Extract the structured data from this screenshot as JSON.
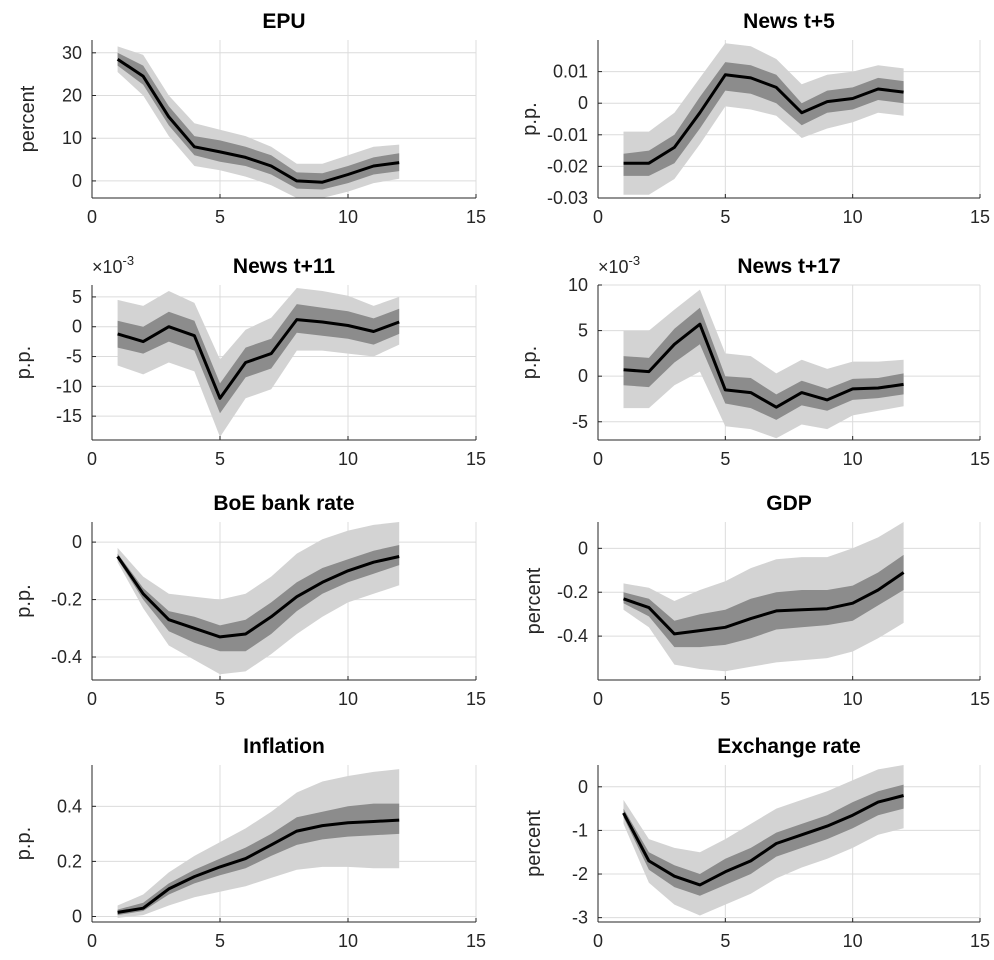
{
  "chart_data": [
    {
      "type": "line",
      "title": "EPU",
      "ylabel": "percent",
      "xlim": [
        0,
        15
      ],
      "ylim": [
        -4,
        33
      ],
      "xticks": [
        0,
        5,
        10,
        15
      ],
      "yticks": [
        0,
        10,
        20,
        30
      ],
      "ytick_labels": [
        "0",
        "10",
        "20",
        "30"
      ],
      "grid": true,
      "x": [
        1,
        2,
        3,
        4,
        5,
        6,
        7,
        8,
        9,
        10,
        11,
        12
      ],
      "series": [
        {
          "role": "median",
          "values": [
            28.5,
            24.5,
            15.0,
            8.0,
            6.8,
            5.5,
            3.5,
            0,
            -0.3,
            1.5,
            3.5,
            4.3
          ]
        },
        {
          "role": "band68",
          "lower": [
            27.0,
            22.5,
            13.0,
            6.0,
            4.5,
            3.5,
            1.5,
            -1.8,
            -2.0,
            -0.5,
            1.5,
            2.3
          ],
          "upper": [
            30.0,
            27.0,
            17.5,
            10.5,
            9.5,
            8.0,
            6.0,
            2.0,
            1.8,
            3.5,
            5.5,
            6.5
          ]
        },
        {
          "role": "band90",
          "lower": [
            25.5,
            20.0,
            10.5,
            3.5,
            2.5,
            1.0,
            -1.0,
            -4.0,
            -4.0,
            -2.5,
            -0.5,
            0.5
          ],
          "upper": [
            31.5,
            29.5,
            20.0,
            13.5,
            12.0,
            10.5,
            8.0,
            4.0,
            4.0,
            6.0,
            8.0,
            8.5
          ]
        }
      ]
    },
    {
      "type": "line",
      "title": "News t+5",
      "ylabel": "p.p.",
      "xlim": [
        0,
        15
      ],
      "ylim": [
        -0.03,
        0.02
      ],
      "xticks": [
        0,
        5,
        10,
        15
      ],
      "yticks": [
        -0.03,
        -0.02,
        -0.01,
        0,
        0.01
      ],
      "ytick_labels": [
        "-0.03",
        "-0.02",
        "-0.01",
        "0",
        "0.01"
      ],
      "grid": true,
      "x": [
        1,
        2,
        3,
        4,
        5,
        6,
        7,
        8,
        9,
        10,
        11,
        12
      ],
      "series": [
        {
          "role": "median",
          "values": [
            -0.019,
            -0.019,
            -0.014,
            -0.003,
            0.009,
            0.008,
            0.005,
            -0.003,
            0.0005,
            0.0015,
            0.0045,
            0.0035
          ]
        },
        {
          "role": "band68",
          "lower": [
            -0.023,
            -0.023,
            -0.019,
            -0.008,
            0.004,
            0.003,
            0.0,
            -0.007,
            -0.003,
            -0.002,
            0.001,
            0.0
          ],
          "upper": [
            -0.016,
            -0.015,
            -0.01,
            0.002,
            0.013,
            0.012,
            0.009,
            0.0,
            0.004,
            0.005,
            0.008,
            0.007
          ]
        },
        {
          "role": "band90",
          "lower": [
            -0.029,
            -0.029,
            -0.024,
            -0.013,
            -0.001,
            -0.002,
            -0.004,
            -0.011,
            -0.008,
            -0.006,
            -0.003,
            -0.004
          ],
          "upper": [
            -0.009,
            -0.009,
            -0.003,
            0.008,
            0.019,
            0.018,
            0.014,
            0.006,
            0.009,
            0.01,
            0.012,
            0.011
          ]
        }
      ]
    },
    {
      "type": "line",
      "title": "News t+11",
      "ylabel": "p.p.",
      "y_multiplier": "×10",
      "y_exponent": "-3",
      "xlim": [
        0,
        15
      ],
      "ylim": [
        -19,
        7
      ],
      "xticks": [
        0,
        5,
        10,
        15
      ],
      "yticks": [
        -15,
        -10,
        -5,
        0,
        5
      ],
      "ytick_labels": [
        "-15",
        "-10",
        "-5",
        "0",
        "5"
      ],
      "grid": true,
      "x": [
        1,
        2,
        3,
        4,
        5,
        6,
        7,
        8,
        9,
        10,
        11,
        12
      ],
      "series": [
        {
          "role": "median",
          "values": [
            -1.2,
            -2.5,
            0.0,
            -1.5,
            -12.0,
            -6.0,
            -4.5,
            1.2,
            0.8,
            0.2,
            -0.8,
            0.8
          ]
        },
        {
          "role": "band68",
          "lower": [
            -3.5,
            -4.5,
            -2.5,
            -4.0,
            -14.5,
            -8.5,
            -7.0,
            -1.0,
            -1.5,
            -2.0,
            -3.0,
            -1.2
          ],
          "upper": [
            1.0,
            0.0,
            2.5,
            1.0,
            -9.5,
            -3.5,
            -2.0,
            3.8,
            3.2,
            2.6,
            1.4,
            3.0
          ]
        },
        {
          "role": "band90",
          "lower": [
            -6.5,
            -8.0,
            -6.0,
            -7.5,
            -18.5,
            -12.0,
            -10.5,
            -4.0,
            -4.0,
            -4.5,
            -5.0,
            -3.0
          ],
          "upper": [
            4.5,
            3.5,
            6.0,
            4.0,
            -5.5,
            -0.5,
            1.5,
            6.5,
            6.0,
            5.2,
            3.5,
            5.0
          ]
        }
      ]
    },
    {
      "type": "line",
      "title": "News t+17",
      "ylabel": "p.p.",
      "y_multiplier": "×10",
      "y_exponent": "-3",
      "xlim": [
        0,
        15
      ],
      "ylim": [
        -7,
        10
      ],
      "xticks": [
        0,
        5,
        10,
        15
      ],
      "yticks": [
        -5,
        0,
        5,
        10
      ],
      "ytick_labels": [
        "-5",
        "0",
        "5",
        "10"
      ],
      "grid": true,
      "x": [
        1,
        2,
        3,
        4,
        5,
        6,
        7,
        8,
        9,
        10,
        11,
        12
      ],
      "series": [
        {
          "role": "median",
          "values": [
            0.7,
            0.5,
            3.5,
            5.7,
            -1.5,
            -1.8,
            -3.4,
            -1.8,
            -2.6,
            -1.4,
            -1.3,
            -0.9
          ]
        },
        {
          "role": "band68",
          "lower": [
            -1.0,
            -1.2,
            1.5,
            3.5,
            -3.0,
            -3.5,
            -4.8,
            -3.2,
            -3.8,
            -2.6,
            -2.4,
            -2.0
          ],
          "upper": [
            2.2,
            2.0,
            5.2,
            7.5,
            0.0,
            -0.2,
            -2.0,
            -0.5,
            -1.4,
            -0.3,
            -0.2,
            0.3
          ]
        },
        {
          "role": "band90",
          "lower": [
            -3.5,
            -3.5,
            -1.0,
            0.5,
            -5.5,
            -5.8,
            -6.8,
            -5.3,
            -5.8,
            -4.3,
            -3.8,
            -3.3
          ],
          "upper": [
            5.0,
            5.0,
            7.3,
            9.5,
            2.5,
            2.2,
            0.3,
            1.8,
            0.8,
            1.6,
            1.6,
            1.8
          ]
        }
      ]
    },
    {
      "type": "line",
      "title": "BoE bank rate",
      "ylabel": "p.p.",
      "xlim": [
        0,
        15
      ],
      "ylim": [
        -0.48,
        0.07
      ],
      "xticks": [
        0,
        5,
        10,
        15
      ],
      "yticks": [
        -0.4,
        -0.2,
        0
      ],
      "ytick_labels": [
        "-0.4",
        "-0.2",
        "0"
      ],
      "grid": true,
      "x": [
        1,
        2,
        3,
        4,
        5,
        6,
        7,
        8,
        9,
        10,
        11,
        12
      ],
      "series": [
        {
          "role": "median",
          "values": [
            -0.05,
            -0.18,
            -0.27,
            -0.3,
            -0.33,
            -0.32,
            -0.26,
            -0.19,
            -0.14,
            -0.1,
            -0.07,
            -0.05
          ]
        },
        {
          "role": "band68",
          "lower": [
            -0.06,
            -0.2,
            -0.31,
            -0.35,
            -0.38,
            -0.38,
            -0.32,
            -0.24,
            -0.18,
            -0.14,
            -0.11,
            -0.08
          ],
          "upper": [
            -0.04,
            -0.16,
            -0.24,
            -0.26,
            -0.29,
            -0.27,
            -0.21,
            -0.14,
            -0.09,
            -0.06,
            -0.03,
            -0.01
          ]
        },
        {
          "role": "band90",
          "lower": [
            -0.07,
            -0.23,
            -0.36,
            -0.41,
            -0.46,
            -0.45,
            -0.39,
            -0.32,
            -0.26,
            -0.21,
            -0.18,
            -0.15
          ],
          "upper": [
            -0.02,
            -0.12,
            -0.18,
            -0.19,
            -0.2,
            -0.18,
            -0.12,
            -0.04,
            0.01,
            0.04,
            0.06,
            0.07
          ]
        }
      ]
    },
    {
      "type": "line",
      "title": "GDP",
      "ylabel": "percent",
      "xlim": [
        0,
        15
      ],
      "ylim": [
        -0.6,
        0.12
      ],
      "xticks": [
        0,
        5,
        10,
        15
      ],
      "yticks": [
        -0.4,
        -0.2,
        0
      ],
      "ytick_labels": [
        "-0.4",
        "-0.2",
        "0"
      ],
      "grid": true,
      "x": [
        1,
        2,
        3,
        4,
        5,
        6,
        7,
        8,
        9,
        10,
        11,
        12
      ],
      "series": [
        {
          "role": "median",
          "values": [
            -0.23,
            -0.27,
            -0.39,
            -0.375,
            -0.36,
            -0.32,
            -0.285,
            -0.28,
            -0.275,
            -0.25,
            -0.19,
            -0.11
          ]
        },
        {
          "role": "band68",
          "lower": [
            -0.25,
            -0.31,
            -0.45,
            -0.45,
            -0.44,
            -0.41,
            -0.37,
            -0.36,
            -0.35,
            -0.33,
            -0.26,
            -0.19
          ],
          "upper": [
            -0.2,
            -0.23,
            -0.33,
            -0.3,
            -0.28,
            -0.23,
            -0.2,
            -0.19,
            -0.19,
            -0.17,
            -0.11,
            -0.03
          ]
        },
        {
          "role": "band90",
          "lower": [
            -0.28,
            -0.36,
            -0.53,
            -0.55,
            -0.56,
            -0.54,
            -0.52,
            -0.51,
            -0.5,
            -0.47,
            -0.41,
            -0.34
          ],
          "upper": [
            -0.16,
            -0.18,
            -0.24,
            -0.19,
            -0.15,
            -0.09,
            -0.05,
            -0.04,
            -0.04,
            0.0,
            0.05,
            0.12
          ]
        }
      ]
    },
    {
      "type": "line",
      "title": "Inflation",
      "ylabel": "p.p.",
      "xlim": [
        0,
        15
      ],
      "ylim": [
        -0.02,
        0.55
      ],
      "xticks": [
        0,
        5,
        10,
        15
      ],
      "yticks": [
        0,
        0.2,
        0.4
      ],
      "ytick_labels": [
        "0",
        "0.2",
        "0.4"
      ],
      "grid": true,
      "x": [
        1,
        2,
        3,
        4,
        5,
        6,
        7,
        8,
        9,
        10,
        11,
        12
      ],
      "series": [
        {
          "role": "median",
          "values": [
            0.015,
            0.03,
            0.1,
            0.145,
            0.18,
            0.21,
            0.26,
            0.31,
            0.33,
            0.34,
            0.345,
            0.35
          ]
        },
        {
          "role": "band68",
          "lower": [
            0.005,
            0.02,
            0.08,
            0.12,
            0.15,
            0.175,
            0.22,
            0.26,
            0.28,
            0.29,
            0.295,
            0.3
          ],
          "upper": [
            0.025,
            0.05,
            0.12,
            0.17,
            0.21,
            0.25,
            0.3,
            0.36,
            0.38,
            0.4,
            0.41,
            0.41
          ]
        },
        {
          "role": "band90",
          "lower": [
            -0.005,
            0.005,
            0.04,
            0.07,
            0.09,
            0.11,
            0.14,
            0.17,
            0.18,
            0.18,
            0.175,
            0.175
          ],
          "upper": [
            0.04,
            0.08,
            0.16,
            0.22,
            0.27,
            0.32,
            0.38,
            0.45,
            0.49,
            0.51,
            0.525,
            0.535
          ]
        }
      ]
    },
    {
      "type": "line",
      "title": "Exchange rate",
      "ylabel": "percent",
      "xlim": [
        0,
        15
      ],
      "ylim": [
        -3.1,
        0.5
      ],
      "xticks": [
        0,
        5,
        10,
        15
      ],
      "yticks": [
        -3,
        -2,
        -1,
        0
      ],
      "ytick_labels": [
        "-3",
        "-2",
        "-1",
        "0"
      ],
      "grid": true,
      "x": [
        1,
        2,
        3,
        4,
        5,
        6,
        7,
        8,
        9,
        10,
        11,
        12
      ],
      "series": [
        {
          "role": "median",
          "values": [
            -0.6,
            -1.7,
            -2.05,
            -2.25,
            -1.95,
            -1.7,
            -1.3,
            -1.1,
            -0.9,
            -0.65,
            -0.35,
            -0.2
          ]
        },
        {
          "role": "band68",
          "lower": [
            -0.7,
            -1.9,
            -2.3,
            -2.5,
            -2.25,
            -2.0,
            -1.6,
            -1.4,
            -1.2,
            -0.95,
            -0.65,
            -0.5
          ],
          "upper": [
            -0.5,
            -1.5,
            -1.8,
            -2.0,
            -1.65,
            -1.4,
            -1.05,
            -0.85,
            -0.65,
            -0.35,
            -0.1,
            0.05
          ]
        },
        {
          "role": "band90",
          "lower": [
            -0.85,
            -2.2,
            -2.7,
            -2.95,
            -2.7,
            -2.45,
            -2.1,
            -1.85,
            -1.65,
            -1.4,
            -1.1,
            -0.95
          ],
          "upper": [
            -0.3,
            -1.2,
            -1.4,
            -1.5,
            -1.2,
            -0.85,
            -0.5,
            -0.3,
            -0.1,
            0.15,
            0.4,
            0.5
          ]
        }
      ]
    }
  ],
  "colors": {
    "median": "#000000",
    "band68": "#8c8c8c",
    "band90": "#d3d3d3",
    "grid": "#dcdcdc",
    "axis": "#262626"
  }
}
